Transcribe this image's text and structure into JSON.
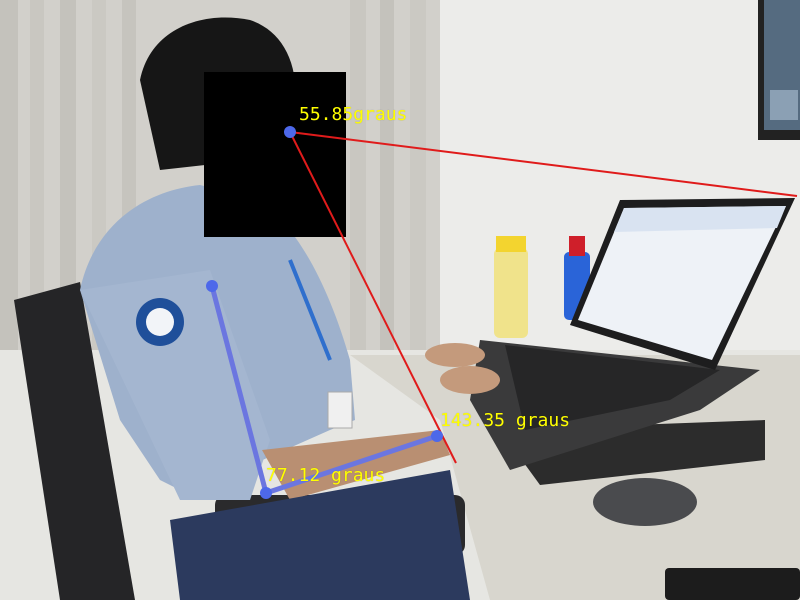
{
  "colors": {
    "label_text": "#ffff00",
    "neck_line": "#e01b1b",
    "arm_line": "#6b76e0",
    "keypoint": "#4d68ea",
    "privacy_mask": "#000000"
  },
  "annotations": {
    "neck_angle": {
      "value": 55.85,
      "text": "55.85graus"
    },
    "shoulder_angle": {
      "value": 143.35,
      "text": "143.35 graus"
    },
    "elbow_angle": {
      "value": 77.12,
      "text": "77.12 graus"
    }
  },
  "scene": {
    "description_items": [
      "person-seated",
      "laptop-on-stand",
      "water-bottles",
      "mouse",
      "office-chair",
      "window-blinds"
    ],
    "icons": [
      "face-privacy-mask",
      "keypoint-marker"
    ]
  }
}
